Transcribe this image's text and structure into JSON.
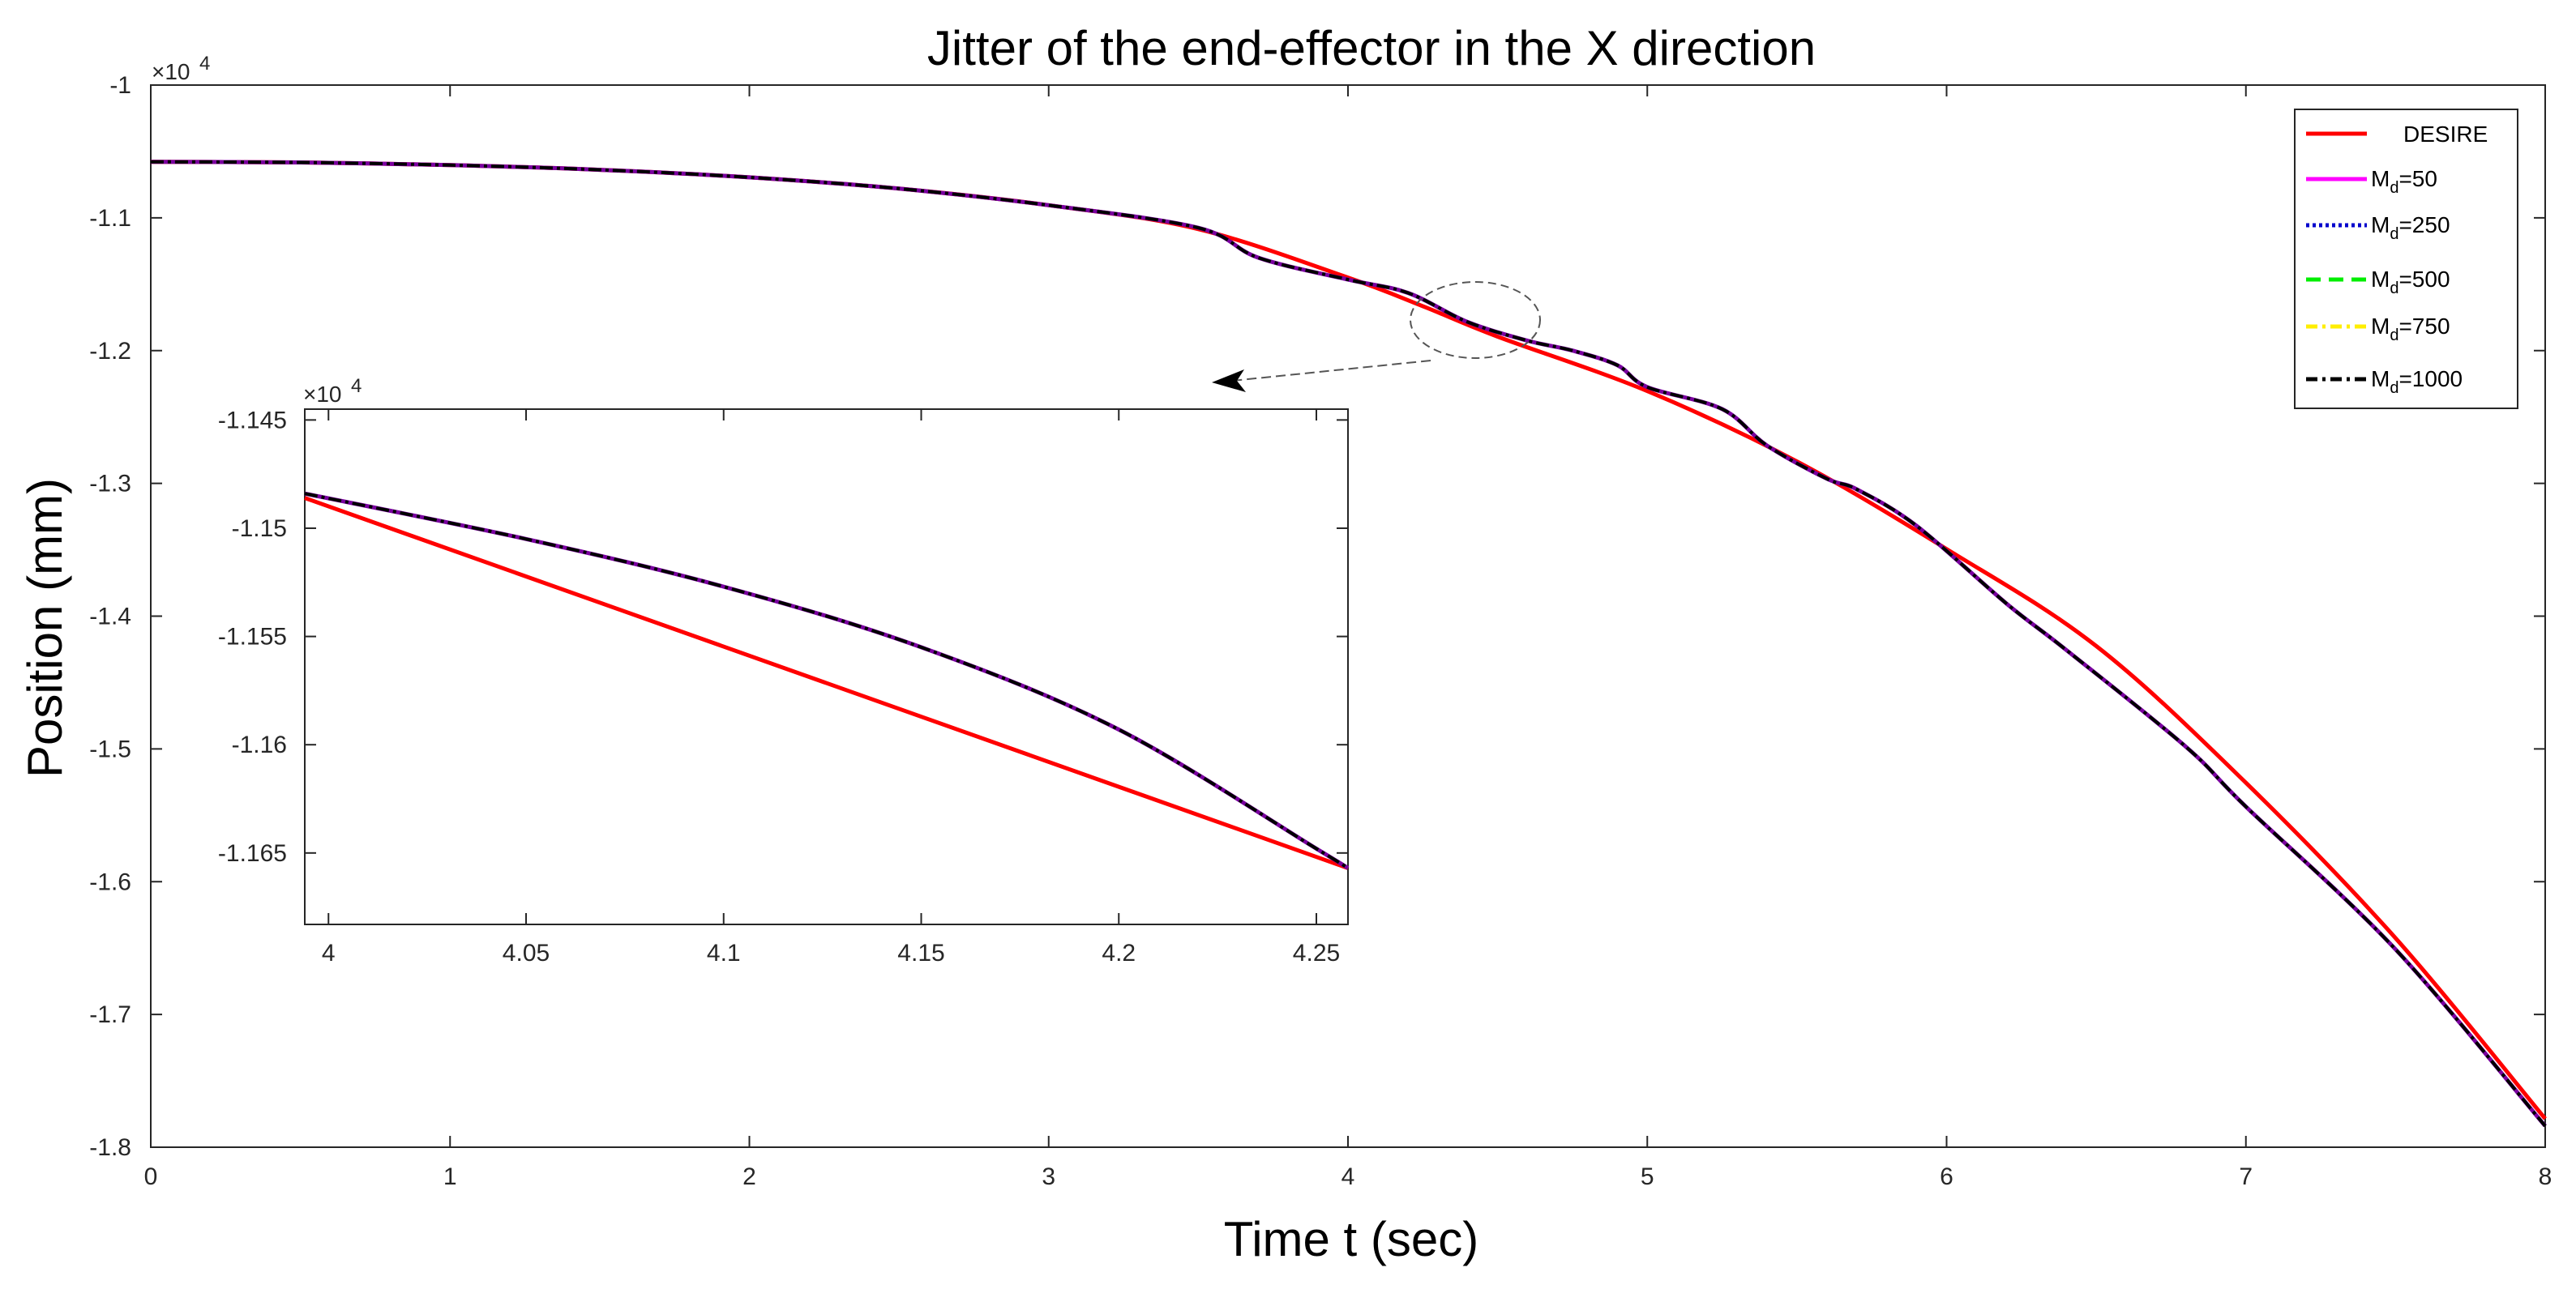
{
  "chart_data": {
    "type": "line",
    "title": "Jitter of the end-effector in the X direction",
    "xlabel": "Time t (sec)",
    "ylabel": "Position (mm)",
    "y_exponent_label": "×10",
    "y_exponent_power": "4",
    "xlim": [
      0,
      8
    ],
    "ylim": [
      -1.8,
      -1.0
    ],
    "xticks": [
      "0",
      "1",
      "2",
      "3",
      "4",
      "5",
      "6",
      "7",
      "8"
    ],
    "yticks": [
      "-1",
      "-1.1",
      "-1.2",
      "-1.3",
      "-1.4",
      "-1.5",
      "-1.6",
      "-1.7",
      "-1.8"
    ],
    "grid": false,
    "legend_position": "top-right",
    "series": [
      {
        "name": "DESIRE",
        "color": "#ff0000",
        "style": "solid",
        "x": [
          0,
          0.5,
          1,
          1.5,
          2,
          2.5,
          3,
          3.5,
          4,
          4.25,
          4.5,
          5,
          5.5,
          6,
          6.5,
          7,
          7.5,
          8
        ],
        "y": [
          -1.0578,
          -1.0583,
          -1.0603,
          -1.0638,
          -1.0695,
          -1.078,
          -1.0905,
          -1.1085,
          -1.145,
          -1.1665,
          -1.1895,
          -1.2305,
          -1.2835,
          -1.3495,
          -1.4225,
          -1.5255,
          -1.6425,
          -1.7785
        ]
      },
      {
        "name": "M_d=50",
        "color": "#ff00ff",
        "style": "solid"
      },
      {
        "name": "M_d=250",
        "color": "#0000cc",
        "style": "dotted"
      },
      {
        "name": "M_d=500",
        "color": "#00ee00",
        "style": "dashed"
      },
      {
        "name": "M_d=750",
        "color": "#ffee00",
        "style": "dashdot"
      },
      {
        "name": "M_d=1000",
        "color": "#000000",
        "style": "dashdot",
        "x": [
          0,
          0.5,
          1,
          1.5,
          2,
          2.5,
          3,
          3.5,
          3.7,
          4,
          4.2,
          4.4,
          4.6,
          4.75,
          4.9,
          5.0,
          5.25,
          5.4,
          5.6,
          5.7,
          5.9,
          6.2,
          6.4,
          6.8,
          7.0,
          7.5,
          8
        ],
        "y": [
          -1.0578,
          -1.0583,
          -1.0603,
          -1.0638,
          -1.0695,
          -1.078,
          -1.0905,
          -1.1075,
          -1.13,
          -1.1465,
          -1.1565,
          -1.1785,
          -1.1925,
          -1.2,
          -1.211,
          -1.2275,
          -1.244,
          -1.2715,
          -1.2965,
          -1.3045,
          -1.332,
          -1.3905,
          -1.4255,
          -1.4985,
          -1.5435,
          -1.651,
          -1.784
        ]
      }
    ],
    "inset": {
      "xlim": [
        3.994,
        4.258
      ],
      "ylim": [
        -1.1683,
        -1.1445
      ],
      "y_exponent_label": "×10",
      "y_exponent_power": "4",
      "xticks": [
        "4",
        "4.05",
        "4.1",
        "4.15",
        "4.2",
        "4.25"
      ],
      "yticks": [
        "-1.145",
        "-1.15",
        "-1.155",
        "-1.16",
        "-1.165"
      ],
      "series": [
        {
          "name": "DESIRE",
          "color": "#ff0000",
          "x": [
            3.994,
            4.258
          ],
          "y": [
            -1.1486,
            -1.1657
          ]
        },
        {
          "name": "M_d=1000",
          "color": "#000000",
          "x": [
            3.994,
            4.05,
            4.1,
            4.15,
            4.2,
            4.25,
            4.258
          ],
          "y": [
            -1.1484,
            -1.1505,
            -1.1527,
            -1.1555,
            -1.1593,
            -1.1648,
            -1.1657
          ]
        }
      ]
    }
  }
}
